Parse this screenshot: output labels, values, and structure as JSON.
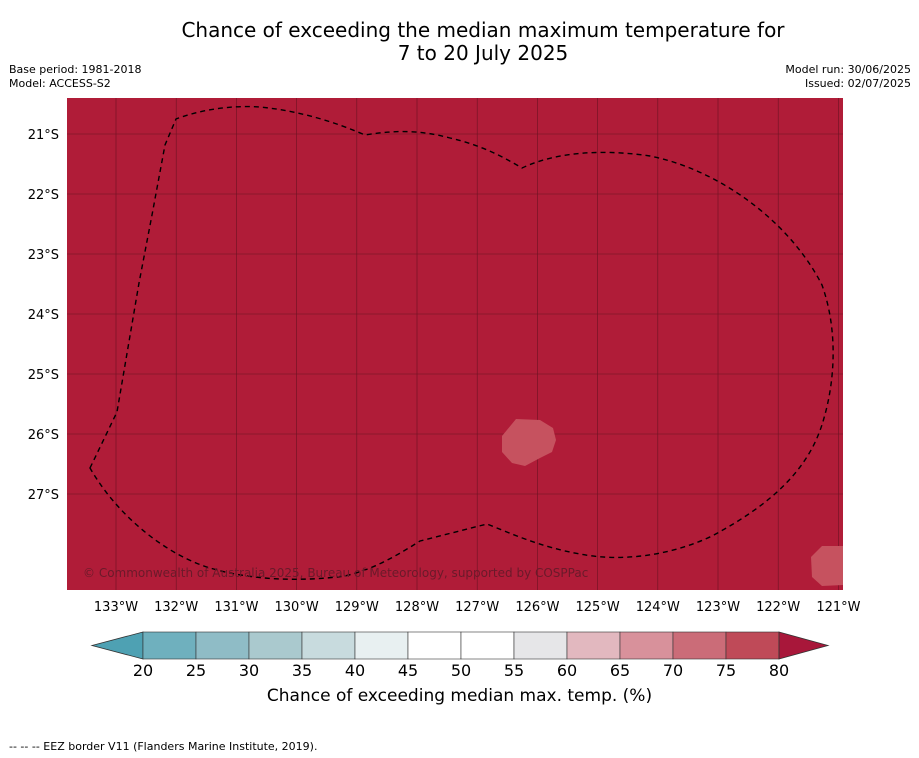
{
  "title_line1": "Chance of exceeding the median maximum temperature for",
  "title_line2": "7 to 20 July 2025",
  "base_period": "Base period: 1981-2018",
  "model": "Model: ACCESS-S2",
  "model_run": "Model run: 30/06/2025",
  "issued": "Issued: 02/07/2025",
  "copyright": "© Commonwealth of Australia 2025, Bureau of Meteorology, supported by COSPPac",
  "map": {
    "lat_labels": [
      "21°S",
      "22°S",
      "23°S",
      "24°S",
      "25°S",
      "26°S",
      "27°S"
    ],
    "lon_labels": [
      "133°W",
      "132°W",
      "131°W",
      "130°W",
      "129°W",
      "128°W",
      "127°W",
      "126°W",
      "125°W",
      "124°W",
      "123°W",
      "122°W",
      "121°W"
    ],
    "background_color": "#b01c38",
    "patch_color": "#c6525f"
  },
  "colorbar": {
    "ticks": [
      "20",
      "25",
      "30",
      "35",
      "40",
      "45",
      "50",
      "55",
      "60",
      "65",
      "70",
      "75",
      "80"
    ],
    "colors": [
      "#6fb0be",
      "#8fbcc6",
      "#aac9ce",
      "#c8dbde",
      "#e8f0f1",
      "#ffffff",
      "#ffffff",
      "#e6e6e8",
      "#e2b8bf",
      "#d8919b",
      "#cb6c78",
      "#bf4a58"
    ],
    "under_color": "#4ea1b3",
    "over_color": "#a8173a",
    "label": "Chance of exceeding median max. temp. (%)"
  },
  "footer": "--  --  -- EEZ border V11 (Flanders Marine Institute, 2019)."
}
